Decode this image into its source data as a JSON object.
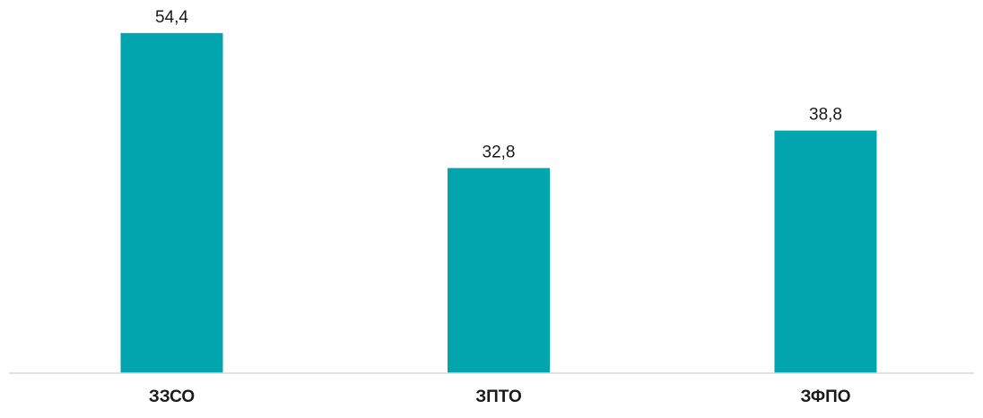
{
  "chart_data": {
    "type": "bar",
    "categories": [
      "ЗЗСО",
      "ЗПТО",
      "ЗФПО"
    ],
    "values": [
      54.4,
      32.8,
      38.8
    ],
    "value_labels": [
      "54,4",
      "32,8",
      "38,8"
    ],
    "title": "",
    "xlabel": "",
    "ylabel": "",
    "ylim": [
      0,
      60
    ],
    "grid": false,
    "legend": "none",
    "colors": {
      "bar": "#00A5AE",
      "axis": "#d9d9d9",
      "text": "#1a1a1a"
    }
  }
}
